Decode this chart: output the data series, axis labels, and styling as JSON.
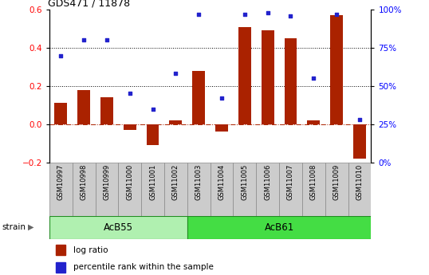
{
  "title": "GDS471 / 11878",
  "samples": [
    "GSM10997",
    "GSM10998",
    "GSM10999",
    "GSM11000",
    "GSM11001",
    "GSM11002",
    "GSM11003",
    "GSM11004",
    "GSM11005",
    "GSM11006",
    "GSM11007",
    "GSM11008",
    "GSM11009",
    "GSM11010"
  ],
  "log_ratio": [
    0.11,
    0.18,
    0.14,
    -0.03,
    -0.11,
    0.02,
    0.28,
    -0.04,
    0.51,
    0.49,
    0.45,
    0.02,
    0.57,
    -0.18
  ],
  "percentile_rank": [
    70,
    80,
    80,
    45,
    35,
    58,
    97,
    42,
    97,
    98,
    96,
    55,
    97,
    28
  ],
  "strain_labels": [
    "AcB55",
    "AcB61"
  ],
  "strain_split": 6,
  "strain_color_left": "#b0f0b0",
  "strain_color_right": "#44dd44",
  "strain_border_color": "#228B22",
  "bar_color": "#aa2200",
  "dot_color": "#2222cc",
  "cell_bg": "#cccccc",
  "cell_border": "#888888",
  "ylim_left": [
    -0.2,
    0.6
  ],
  "ylim_right": [
    0,
    100
  ],
  "yticks_left": [
    -0.2,
    0.0,
    0.2,
    0.4,
    0.6
  ],
  "yticks_right": [
    0,
    25,
    50,
    75,
    100
  ],
  "hline_values": [
    0.2,
    0.4
  ],
  "legend_items": [
    "log ratio",
    "percentile rank within the sample"
  ],
  "legend_colors": [
    "#aa2200",
    "#2222cc"
  ],
  "bg_color": "#ffffff"
}
